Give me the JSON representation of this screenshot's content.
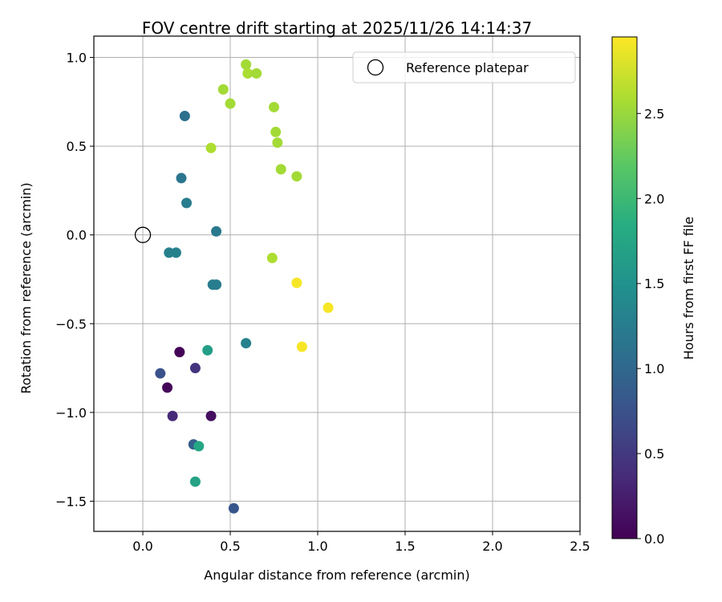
{
  "chart_data": {
    "type": "scatter",
    "title": "FOV centre drift starting at 2025/11/26 14:14:37",
    "xlabel": "Angular distance from reference (arcmin)",
    "ylabel": "Rotation from reference (arcmin)",
    "xlim": [
      -0.28,
      2.5
    ],
    "ylim": [
      -1.67,
      1.12
    ],
    "xticks": [
      0.0,
      0.5,
      1.0,
      1.5,
      2.0,
      2.5
    ],
    "xtick_labels": [
      "0.0",
      "0.5",
      "1.0",
      "1.5",
      "2.0",
      "2.5"
    ],
    "yticks": [
      1.0,
      0.5,
      0.0,
      -0.5,
      -1.0,
      -1.5
    ],
    "ytick_labels": [
      "1.0",
      "0.5",
      "0.0",
      "−0.5",
      "−1.0",
      "−1.5"
    ],
    "grid": true,
    "legend": {
      "position": "top-right",
      "entries": [
        "Reference platepar"
      ]
    },
    "reference_point": {
      "x": 0.0,
      "y": 0.0,
      "label": "Reference platepar"
    },
    "colorbar": {
      "label": "Hours from first FF file",
      "colormap": "viridis",
      "range": [
        0.0,
        2.95
      ],
      "ticks": [
        0.0,
        0.5,
        1.0,
        1.5,
        2.0,
        2.5
      ],
      "tick_labels": [
        "0.0",
        "0.5",
        "1.0",
        "1.5",
        "2.0",
        "2.5"
      ]
    },
    "points": [
      {
        "x": 0.21,
        "y": -0.66,
        "hours": 0.02
      },
      {
        "x": 0.14,
        "y": -0.86,
        "hours": 0.05
      },
      {
        "x": 0.39,
        "y": -1.02,
        "hours": 0.12
      },
      {
        "x": 0.17,
        "y": -1.02,
        "hours": 0.35
      },
      {
        "x": 0.3,
        "y": -0.75,
        "hours": 0.45
      },
      {
        "x": 0.1,
        "y": -0.78,
        "hours": 0.75
      },
      {
        "x": 0.52,
        "y": -1.54,
        "hours": 0.8
      },
      {
        "x": 0.29,
        "y": -1.18,
        "hours": 0.9
      },
      {
        "x": 0.24,
        "y": 0.67,
        "hours": 1.1
      },
      {
        "x": 0.22,
        "y": 0.32,
        "hours": 1.15
      },
      {
        "x": 0.25,
        "y": 0.18,
        "hours": 1.25
      },
      {
        "x": 0.42,
        "y": 0.02,
        "hours": 1.2
      },
      {
        "x": 0.15,
        "y": -0.1,
        "hours": 1.3
      },
      {
        "x": 0.19,
        "y": -0.1,
        "hours": 1.3
      },
      {
        "x": 0.4,
        "y": -0.28,
        "hours": 1.25
      },
      {
        "x": 0.42,
        "y": -0.28,
        "hours": 1.25
      },
      {
        "x": 0.59,
        "y": -0.61,
        "hours": 1.3
      },
      {
        "x": 0.37,
        "y": -0.65,
        "hours": 1.65
      },
      {
        "x": 0.32,
        "y": -1.19,
        "hours": 1.75
      },
      {
        "x": 0.3,
        "y": -1.39,
        "hours": 1.7
      },
      {
        "x": 0.46,
        "y": 0.82,
        "hours": 2.55
      },
      {
        "x": 0.5,
        "y": 0.74,
        "hours": 2.55
      },
      {
        "x": 0.59,
        "y": 0.96,
        "hours": 2.55
      },
      {
        "x": 0.6,
        "y": 0.91,
        "hours": 2.58
      },
      {
        "x": 0.65,
        "y": 0.91,
        "hours": 2.55
      },
      {
        "x": 0.75,
        "y": 0.72,
        "hours": 2.55
      },
      {
        "x": 0.76,
        "y": 0.58,
        "hours": 2.55
      },
      {
        "x": 0.77,
        "y": 0.52,
        "hours": 2.55
      },
      {
        "x": 0.39,
        "y": 0.49,
        "hours": 2.6
      },
      {
        "x": 0.79,
        "y": 0.37,
        "hours": 2.55
      },
      {
        "x": 0.88,
        "y": 0.33,
        "hours": 2.55
      },
      {
        "x": 0.74,
        "y": -0.13,
        "hours": 2.6
      },
      {
        "x": 0.88,
        "y": -0.27,
        "hours": 2.92
      },
      {
        "x": 1.06,
        "y": -0.41,
        "hours": 2.92
      },
      {
        "x": 0.91,
        "y": -0.63,
        "hours": 2.92
      }
    ]
  }
}
